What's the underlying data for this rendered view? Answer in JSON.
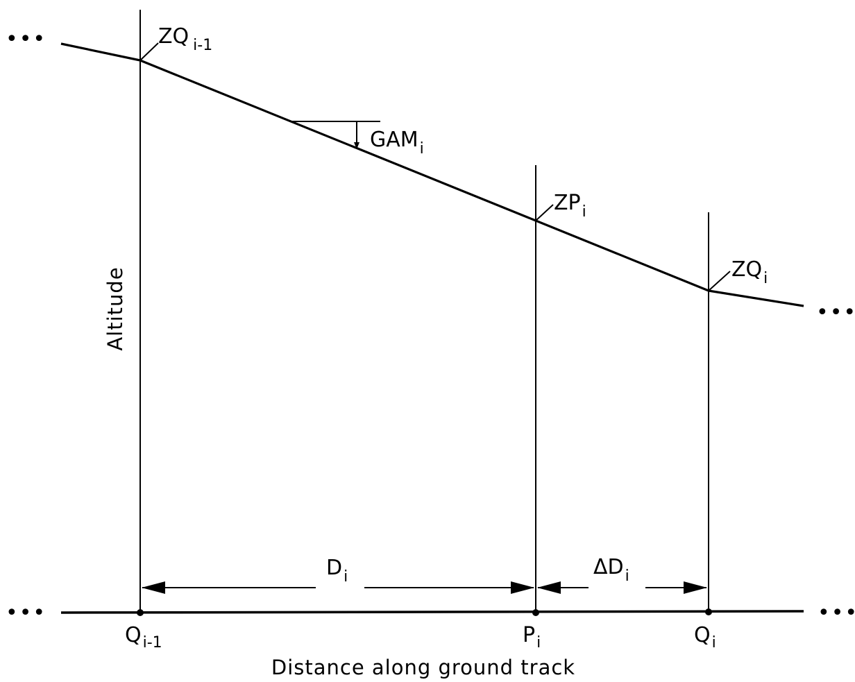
{
  "diagram": {
    "ink_color": "#000000",
    "background_color": "#ffffff",
    "y_axis_label": "Altitude",
    "x_axis_label": "Distance along ground track",
    "continuation_marker": "•••",
    "ground_points": {
      "q_prev": {
        "base": "Q",
        "sub": "i-1"
      },
      "p": {
        "base": "P",
        "sub": "i"
      },
      "q": {
        "base": "Q",
        "sub": "i"
      }
    },
    "profile_points": {
      "zq_prev": {
        "base": "ZQ",
        "sub": "i-1"
      },
      "zp": {
        "base": "ZP",
        "sub": "i"
      },
      "zq": {
        "base": "ZQ",
        "sub": "i"
      }
    },
    "angle_label": {
      "base": "GAM",
      "sub": "i"
    },
    "distances": {
      "d": {
        "base": "D",
        "sub": "i"
      },
      "delta_d": {
        "base": "ΔD",
        "sub": "i"
      }
    }
  }
}
